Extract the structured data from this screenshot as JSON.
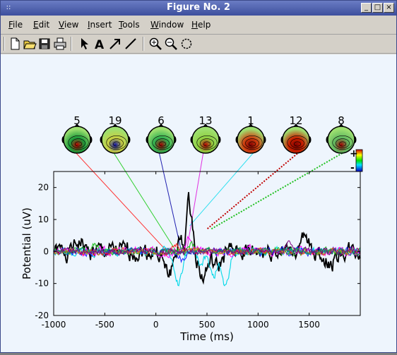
{
  "window": {
    "title": "Figure No. 2",
    "sys_icon": "::",
    "min_glyph": "_",
    "max_glyph": "□",
    "close_glyph": "×"
  },
  "menu": [
    {
      "label": "File",
      "u": "F",
      "rest": "ile"
    },
    {
      "label": "Edit",
      "u": "E",
      "rest": "dit"
    },
    {
      "label": "View",
      "u": "V",
      "rest": "iew"
    },
    {
      "label": "Insert",
      "u": "I",
      "rest": "nsert"
    },
    {
      "label": "Tools",
      "u": "T",
      "rest": "ools"
    },
    {
      "label": "Window",
      "u": "W",
      "rest": "indow"
    },
    {
      "label": "Help",
      "u": "H",
      "rest": "elp"
    }
  ],
  "toolbar": [
    {
      "name": "new-file-icon"
    },
    {
      "name": "open-folder-icon"
    },
    {
      "name": "save-disk-icon"
    },
    {
      "name": "print-icon"
    },
    {
      "name": "select-arrow-icon"
    },
    {
      "name": "text-icon",
      "glyph": "A"
    },
    {
      "name": "arrow-icon"
    },
    {
      "name": "line-icon"
    },
    {
      "name": "zoom-in-icon"
    },
    {
      "name": "zoom-out-icon"
    },
    {
      "name": "rotate-icon"
    }
  ],
  "chart_data": {
    "type": "line",
    "xlabel": "Time (ms)",
    "ylabel": "Potential (uV)",
    "xlim": [
      -1000,
      2000
    ],
    "ylim": [
      -20,
      25
    ],
    "xticks": [
      -1000,
      -500,
      0,
      500,
      1000,
      1500
    ],
    "yticks": [
      20,
      10,
      0,
      -10,
      -20
    ],
    "colorbar": {
      "plus": "+",
      "minus": "-"
    },
    "topomaps": [
      {
        "label": "5",
        "link_color": "#ff3030",
        "dashed": false,
        "dominant": "#1a9a3a",
        "hot": "#b80000",
        "target": [
          110,
          0
        ]
      },
      {
        "label": "19",
        "link_color": "#30d030",
        "dashed": false,
        "dominant": "#c8d040",
        "hot": "#1010a0",
        "target": [
          200,
          0
        ]
      },
      {
        "label": "6",
        "link_color": "#2020b0",
        "dashed": false,
        "dominant": "#30b050",
        "hot": "#a00000",
        "target": [
          250,
          0
        ]
      },
      {
        "label": "13",
        "link_color": "#e030e0",
        "dashed": false,
        "dominant": "#90d040",
        "hot": "#b00000",
        "target": [
          300,
          0
        ]
      },
      {
        "label": "1",
        "link_color": "#30e0f0",
        "dashed": false,
        "dominant": "#d04010",
        "hot": "#800000",
        "target": [
          330,
          8
        ]
      },
      {
        "label": "12",
        "link_color": "#c00000",
        "dashed": true,
        "dominant": "#c82000",
        "hot": "#800000",
        "target": [
          500,
          7
        ]
      },
      {
        "label": "8",
        "link_color": "#20c020",
        "dashed": true,
        "dominant": "#60b860",
        "hot": "#a00000",
        "target": [
          540,
          7
        ]
      }
    ],
    "series": [
      {
        "color": "#000000",
        "width": 1.8,
        "amp": 2.8,
        "seed": 1,
        "peaks": [
          [
            300,
            22,
            60
          ],
          [
            120,
            -7,
            60
          ],
          [
            280,
            -17,
            35
          ],
          [
            460,
            -8,
            60
          ],
          [
            600,
            -5,
            60
          ],
          [
            -750,
            3,
            50
          ],
          [
            1450,
            3,
            60
          ],
          [
            1700,
            -4,
            70
          ]
        ]
      },
      {
        "color": "#00d8e8",
        "width": 1.1,
        "amp": 1.2,
        "seed": 2,
        "peaks": [
          [
            220,
            -10,
            55
          ],
          [
            560,
            -8,
            50
          ],
          [
            680,
            -11,
            50
          ],
          [
            440,
            -4,
            40
          ]
        ]
      },
      {
        "color": "#ff00ff",
        "width": 1.0,
        "amp": 1.3,
        "seed": 3,
        "peaks": [
          [
            320,
            4,
            40
          ],
          [
            900,
            2,
            60
          ]
        ]
      },
      {
        "color": "#2020ff",
        "width": 1.0,
        "amp": 1.2,
        "seed": 4,
        "peaks": [
          [
            260,
            -3,
            40
          ]
        ]
      },
      {
        "color": "#20c020",
        "width": 1.0,
        "amp": 1.1,
        "seed": 5,
        "peaks": [
          [
            350,
            2,
            40
          ],
          [
            -600,
            2,
            50
          ]
        ]
      },
      {
        "color": "#ff2020",
        "width": 1.0,
        "amp": 1.0,
        "seed": 6,
        "peaks": [
          [
            200,
            2,
            40
          ]
        ]
      },
      {
        "color": "#a0a020",
        "width": 1.0,
        "amp": 0.9,
        "seed": 7,
        "peaks": []
      },
      {
        "color": "#008080",
        "width": 1.0,
        "amp": 0.9,
        "seed": 8,
        "peaks": []
      },
      {
        "color": "#800080",
        "width": 1.0,
        "amp": 1.0,
        "seed": 9,
        "peaks": [
          [
            1300,
            2,
            40
          ]
        ]
      }
    ]
  }
}
